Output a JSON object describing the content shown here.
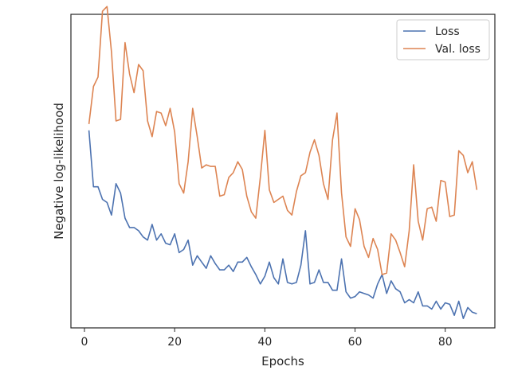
{
  "chart_data": {
    "type": "line",
    "title": "",
    "xlabel": "Epochs",
    "ylabel": "Negative log-likelihood",
    "xlim": [
      -3,
      91
    ],
    "ylim": [
      0,
      100
    ],
    "xticks": [
      0,
      20,
      40,
      60,
      80
    ],
    "yticks_visible": false,
    "grid": false,
    "legend_position": "top-right",
    "colors": {
      "loss": "#4c72b0",
      "val_loss": "#dd8452",
      "axes": "#262626"
    },
    "x": [
      1,
      2,
      3,
      4,
      5,
      6,
      7,
      8,
      9,
      10,
      11,
      12,
      13,
      14,
      15,
      16,
      17,
      18,
      19,
      20,
      21,
      22,
      23,
      24,
      25,
      26,
      27,
      28,
      29,
      30,
      31,
      32,
      33,
      34,
      35,
      36,
      37,
      38,
      39,
      40,
      41,
      42,
      43,
      44,
      45,
      46,
      47,
      48,
      49,
      50,
      51,
      52,
      53,
      54,
      55,
      56,
      57,
      58,
      59,
      60,
      61,
      62,
      63,
      64,
      65,
      66,
      67,
      68,
      69,
      70,
      71,
      72,
      73,
      74,
      75,
      76,
      77,
      78,
      79,
      80,
      81,
      82,
      83,
      84,
      85,
      86,
      87
    ],
    "series": [
      {
        "name": "Loss",
        "values": [
          63,
          45,
          45,
          41,
          40,
          36,
          46,
          43,
          35,
          32,
          32,
          31,
          29,
          28,
          33,
          28,
          30,
          27,
          26.5,
          30,
          24,
          25,
          28,
          20,
          23,
          21,
          19,
          23,
          20.5,
          18.5,
          18.5,
          20,
          18,
          21,
          21,
          22.5,
          19.5,
          17,
          14,
          16.5,
          21,
          16,
          14,
          22,
          14.5,
          14,
          14.5,
          20,
          31,
          14,
          14.5,
          18.5,
          14.5,
          14.5,
          12,
          12,
          22,
          11.5,
          9.5,
          10,
          11.5,
          11,
          10.5,
          9.5,
          14,
          17,
          11,
          15,
          12.5,
          11.5,
          8,
          9,
          8,
          11.5,
          7,
          7,
          6,
          8.5,
          6,
          8,
          7.5,
          4,
          8.5,
          3,
          6.5,
          5,
          4.5
        ]
      },
      {
        "name": "Val. loss",
        "values": [
          65,
          77,
          80,
          101,
          102.5,
          88,
          66,
          66.5,
          91,
          81,
          75,
          84,
          82,
          66,
          61,
          69,
          68.5,
          64.5,
          70,
          62.5,
          46,
          43,
          53,
          70,
          61,
          51,
          52,
          51.5,
          51.5,
          42,
          42.5,
          48,
          49.5,
          53,
          50.5,
          42,
          37,
          35,
          48,
          63,
          44,
          40,
          41,
          42,
          37.5,
          36,
          43.5,
          48.5,
          49.5,
          56,
          60,
          55,
          46,
          41,
          60,
          68.5,
          43,
          29,
          26,
          38,
          34.5,
          26,
          22.5,
          28.5,
          25,
          17,
          17.5,
          30,
          28,
          24,
          19.5,
          31,
          52,
          34,
          28,
          38,
          38.5,
          34,
          47,
          46.5,
          35.5,
          36,
          56.5,
          55,
          49.5,
          53,
          44
        ]
      }
    ]
  }
}
